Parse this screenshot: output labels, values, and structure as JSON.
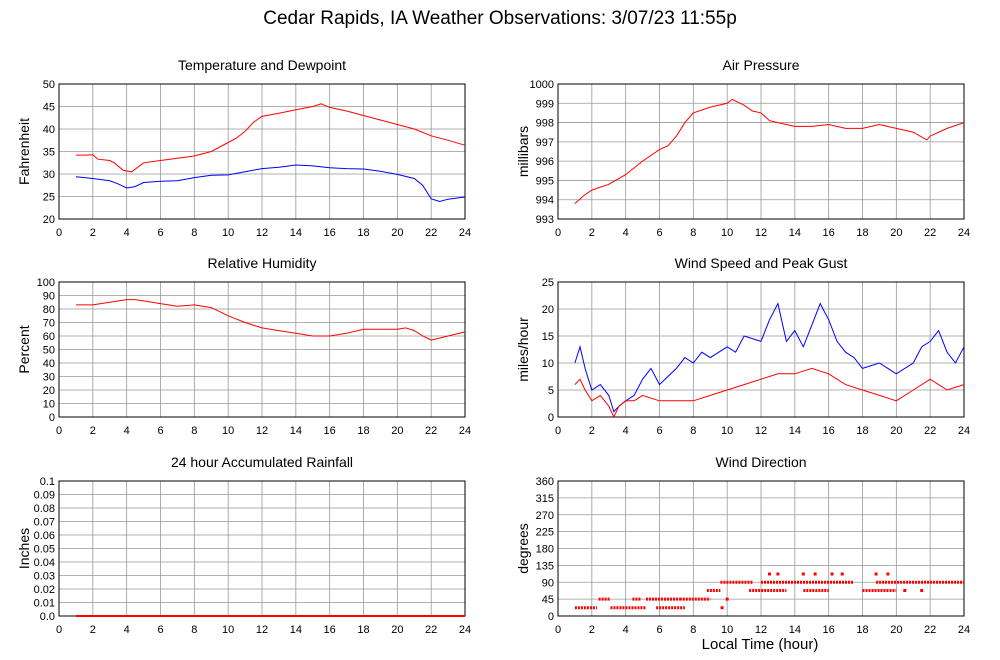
{
  "page": {
    "title": "Cedar Rapids, IA Weather Observations: 3/07/23 11:55p",
    "xlabel": "Local Time (hour)"
  },
  "colors": {
    "red": "#ff0000",
    "blue": "#0000ff",
    "grid": "#999999"
  },
  "chart_data": [
    {
      "id": "temp",
      "type": "line",
      "title": "Temperature and Dewpoint",
      "ylabel": "Fahrenheit",
      "xlim": [
        0,
        24
      ],
      "ylim": [
        20,
        50
      ],
      "xticks": [
        0,
        2,
        4,
        6,
        8,
        10,
        12,
        14,
        16,
        18,
        20,
        22,
        24
      ],
      "yticks": [
        20,
        25,
        30,
        35,
        40,
        45,
        50
      ],
      "grid": true,
      "series": [
        {
          "color": "red",
          "x": [
            1,
            1.5,
            2,
            2.3,
            3,
            3.3,
            3.8,
            4.3,
            5,
            6,
            7,
            8,
            9,
            10,
            10.5,
            11,
            11.5,
            12,
            13,
            14,
            15,
            15.5,
            16,
            17,
            18,
            19,
            20,
            21,
            22,
            23,
            24
          ],
          "y": [
            34.2,
            34.2,
            34.3,
            33.3,
            33.0,
            32.4,
            30.8,
            30.5,
            32.5,
            33.0,
            33.5,
            34.0,
            35.0,
            37.0,
            38.0,
            39.5,
            41.5,
            42.8,
            43.5,
            44.3,
            45.0,
            45.6,
            44.8,
            44.0,
            43.0,
            42.0,
            41.0,
            40.0,
            38.5,
            37.5,
            36.4
          ]
        },
        {
          "color": "blue",
          "x": [
            1,
            2,
            3,
            3.5,
            4,
            4.5,
            5,
            6,
            7,
            8,
            9,
            10,
            11,
            12,
            13,
            14,
            15,
            16,
            17,
            18,
            19,
            20,
            21,
            21.5,
            22,
            22.5,
            23,
            24
          ],
          "y": [
            29.4,
            29.0,
            28.5,
            27.8,
            26.9,
            27.2,
            28.1,
            28.4,
            28.5,
            29.2,
            29.7,
            29.8,
            30.5,
            31.2,
            31.5,
            32.0,
            31.8,
            31.4,
            31.2,
            31.1,
            30.6,
            29.9,
            29.0,
            27.5,
            24.5,
            23.9,
            24.4,
            24.9
          ]
        }
      ]
    },
    {
      "id": "pressure",
      "type": "line",
      "title": "Air Pressure",
      "ylabel": "millibars",
      "xlim": [
        0,
        24
      ],
      "ylim": [
        993,
        1000
      ],
      "xticks": [
        0,
        2,
        4,
        6,
        8,
        10,
        12,
        14,
        16,
        18,
        20,
        22,
        24
      ],
      "yticks": [
        993,
        994,
        995,
        996,
        997,
        998,
        999,
        1000
      ],
      "grid": true,
      "series": [
        {
          "color": "red",
          "x": [
            1,
            1.5,
            2,
            3,
            4,
            5,
            6,
            6.5,
            7,
            7.5,
            8,
            9,
            10,
            10.3,
            11,
            11.5,
            12,
            12.5,
            13,
            14,
            15,
            16,
            17,
            18,
            19,
            20,
            21,
            21.8,
            22,
            23,
            24
          ],
          "y": [
            993.8,
            994.2,
            994.5,
            994.8,
            995.3,
            996.0,
            996.6,
            996.8,
            997.3,
            998.0,
            998.5,
            998.8,
            999.0,
            999.2,
            998.9,
            998.6,
            998.5,
            998.1,
            998.0,
            997.8,
            997.8,
            997.9,
            997.7,
            997.7,
            997.9,
            997.7,
            997.5,
            997.1,
            997.3,
            997.7,
            998.0
          ]
        }
      ]
    },
    {
      "id": "humidity",
      "type": "line",
      "title": "Relative Humidity",
      "ylabel": "Percent",
      "xlim": [
        0,
        24
      ],
      "ylim": [
        0,
        100
      ],
      "xticks": [
        0,
        2,
        4,
        6,
        8,
        10,
        12,
        14,
        16,
        18,
        20,
        22,
        24
      ],
      "yticks": [
        0,
        10,
        20,
        30,
        40,
        50,
        60,
        70,
        80,
        90,
        100
      ],
      "grid": true,
      "series": [
        {
          "color": "red",
          "x": [
            1,
            2,
            3,
            4,
            4.5,
            5,
            6,
            7,
            8,
            9,
            10,
            11,
            12,
            13,
            14,
            15,
            16,
            17,
            18,
            19,
            20,
            20.5,
            21,
            21.5,
            22,
            23,
            24
          ],
          "y": [
            83,
            83,
            85,
            87,
            87,
            86,
            84,
            82,
            83,
            81,
            75,
            70,
            66,
            64,
            62,
            60,
            60,
            62,
            65,
            65,
            65,
            66,
            64,
            60,
            57,
            60,
            63
          ]
        }
      ]
    },
    {
      "id": "wind",
      "type": "line",
      "title": "Wind Speed and Peak Gust",
      "ylabel": "miles/hour",
      "xlim": [
        0,
        24
      ],
      "ylim": [
        0,
        25
      ],
      "xticks": [
        0,
        2,
        4,
        6,
        8,
        10,
        12,
        14,
        16,
        18,
        20,
        22,
        24
      ],
      "yticks": [
        0,
        5,
        10,
        15,
        20,
        25
      ],
      "grid": true,
      "series": [
        {
          "color": "blue",
          "x": [
            1,
            1.3,
            1.6,
            2,
            2.5,
            3,
            3.3,
            3.6,
            4,
            4.5,
            5,
            5.5,
            6,
            7,
            7.5,
            8,
            8.5,
            9,
            10,
            10.5,
            11,
            12,
            12.5,
            13,
            13.5,
            14,
            14.5,
            15,
            15.5,
            16,
            16.5,
            17,
            17.5,
            18,
            19,
            20,
            21,
            21.5,
            22,
            22.5,
            23,
            23.5,
            24
          ],
          "y": [
            10,
            13,
            9,
            5,
            6,
            4,
            1,
            2,
            3,
            4,
            7,
            9,
            6,
            9,
            11,
            10,
            12,
            11,
            13,
            12,
            15,
            14,
            18,
            21,
            14,
            16,
            13,
            17,
            21,
            18,
            14,
            12,
            11,
            9,
            10,
            8,
            10,
            13,
            14,
            16,
            12,
            10,
            13
          ]
        },
        {
          "color": "red",
          "x": [
            1,
            1.3,
            1.6,
            2,
            2.5,
            3,
            3.3,
            3.6,
            4,
            4.5,
            5,
            6,
            7,
            8,
            9,
            10,
            11,
            12,
            13,
            14,
            15,
            16,
            17,
            18,
            19,
            20,
            21,
            22,
            23,
            24
          ],
          "y": [
            6,
            7,
            5,
            3,
            4,
            2,
            0,
            2,
            3,
            3,
            4,
            3,
            3,
            3,
            4,
            5,
            6,
            7,
            8,
            8,
            9,
            8,
            6,
            5,
            4,
            3,
            5,
            7,
            5,
            6
          ]
        }
      ]
    },
    {
      "id": "rain",
      "type": "line",
      "title": "24 hour Accumulated Rainfall",
      "ylabel": "Inches",
      "xlim": [
        0,
        24
      ],
      "ylim": [
        0,
        0.1
      ],
      "xticks": [
        0,
        2,
        4,
        6,
        8,
        10,
        12,
        14,
        16,
        18,
        20,
        22,
        24
      ],
      "yticks": [
        0.0,
        0.01,
        0.02,
        0.03,
        0.04,
        0.05,
        0.06,
        0.07,
        0.08,
        0.09,
        0.1
      ],
      "ytick_labels": [
        "0.0",
        "0.01",
        "0.02",
        "0.03",
        "0.04",
        "0.05",
        "0.06",
        "0.07",
        "0.08",
        "0.09",
        "0.1"
      ],
      "grid": true,
      "series": [
        {
          "color": "red",
          "x": [
            1,
            24
          ],
          "y": [
            0,
            0
          ]
        }
      ]
    },
    {
      "id": "direction",
      "type": "scatter",
      "title": "Wind Direction",
      "ylabel": "degrees",
      "xlim": [
        0,
        24
      ],
      "ylim": [
        0,
        360
      ],
      "xticks": [
        0,
        2,
        4,
        6,
        8,
        10,
        12,
        14,
        16,
        18,
        20,
        22,
        24
      ],
      "yticks": [
        0,
        45,
        90,
        135,
        180,
        225,
        270,
        315,
        360
      ],
      "grid": true,
      "series": [
        {
          "color": "red",
          "segments": [
            {
              "x0": 1.0,
              "x1": 2.3,
              "y": 22
            },
            {
              "x0": 2.4,
              "x1": 3.1,
              "y": 45
            },
            {
              "x0": 3.1,
              "x1": 5.2,
              "y": 22
            },
            {
              "x0": 4.4,
              "x1": 4.9,
              "y": 45
            },
            {
              "x0": 5.2,
              "x1": 7.2,
              "y": 45
            },
            {
              "x0": 5.8,
              "x1": 7.5,
              "y": 22
            },
            {
              "x0": 7.2,
              "x1": 9.0,
              "y": 45
            },
            {
              "x0": 8.8,
              "x1": 9.6,
              "y": 68
            },
            {
              "x0": 9.6,
              "x1": 11.5,
              "y": 90
            },
            {
              "x0": 11.3,
              "x1": 13.5,
              "y": 68
            },
            {
              "x0": 12.0,
              "x1": 17.5,
              "y": 90
            },
            {
              "x0": 14.5,
              "x1": 16.0,
              "y": 68
            },
            {
              "x0": 18.0,
              "x1": 20.0,
              "y": 68
            },
            {
              "x0": 18.8,
              "x1": 24.0,
              "y": 90
            }
          ],
          "points": [
            {
              "x": 12.5,
              "y": 112
            },
            {
              "x": 13.0,
              "y": 112
            },
            {
              "x": 14.5,
              "y": 112
            },
            {
              "x": 15.2,
              "y": 112
            },
            {
              "x": 16.2,
              "y": 112
            },
            {
              "x": 16.8,
              "y": 112
            },
            {
              "x": 18.8,
              "y": 112
            },
            {
              "x": 19.5,
              "y": 112
            },
            {
              "x": 20.5,
              "y": 68
            },
            {
              "x": 21.5,
              "y": 68
            },
            {
              "x": 10.0,
              "y": 45
            },
            {
              "x": 9.7,
              "y": 22
            }
          ]
        }
      ]
    }
  ]
}
